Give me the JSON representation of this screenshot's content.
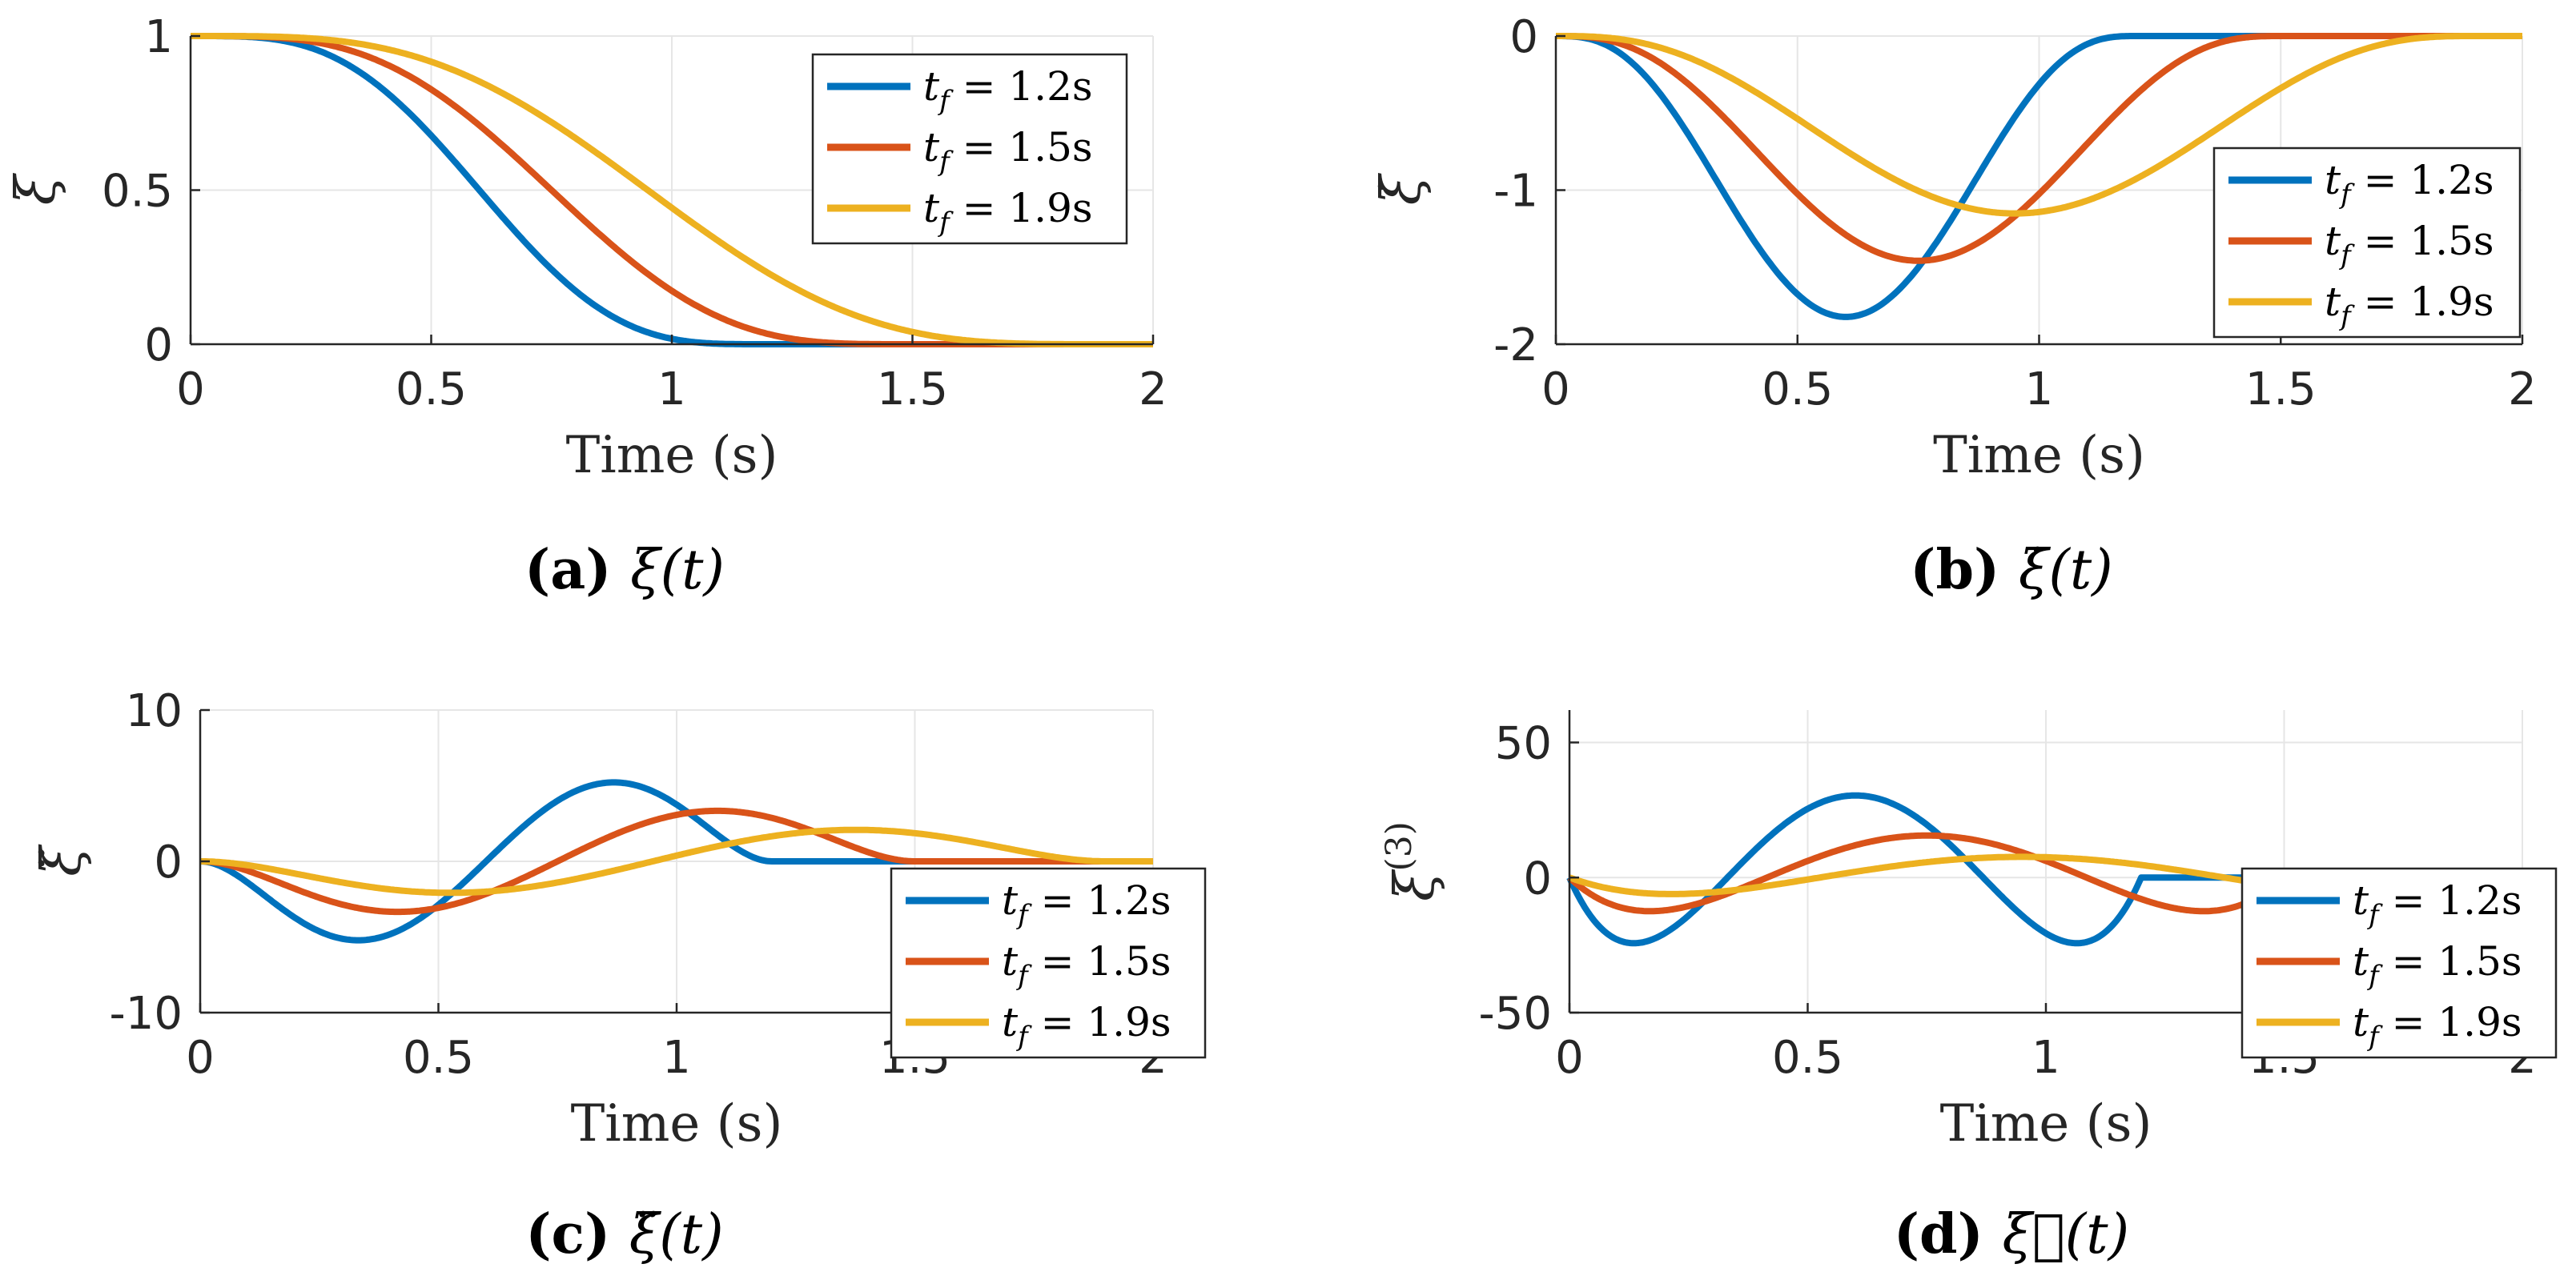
{
  "colors": {
    "blue": "#0072BD",
    "orange": "#D95319",
    "yellow": "#EDB120",
    "grid": "#e6e6e6",
    "axis": "#262626"
  },
  "chart_data": [
    {
      "id": "a",
      "type": "line",
      "function": "position",
      "caption_letter": "(a)",
      "caption_math": "ξ(t)",
      "xlabel": "Time (s)",
      "ylabel": "ξ",
      "xlim": [
        0,
        2
      ],
      "ylim": [
        0,
        1
      ],
      "xticks": [
        0,
        0.5,
        1,
        1.5,
        2
      ],
      "xtick_labels": [
        "0",
        "0.5",
        "1",
        "1.5",
        "2"
      ],
      "yticks": [
        0,
        0.5,
        1
      ],
      "ytick_labels": [
        "0",
        "0.5",
        "1"
      ],
      "legend_position": "top-right",
      "series": [
        {
          "name": "t_f = 1.2s",
          "tf": 1.2,
          "color": "#0072BD"
        },
        {
          "name": "t_f = 1.5s",
          "tf": 1.5,
          "color": "#D95319"
        },
        {
          "name": "t_f = 1.9s",
          "tf": 1.9,
          "color": "#EDB120"
        }
      ]
    },
    {
      "id": "b",
      "type": "line",
      "function": "velocity",
      "caption_letter": "(b)",
      "caption_math": "ξ̇(t)",
      "xlabel": "Time (s)",
      "ylabel": "ξ̇",
      "xlim": [
        0,
        2
      ],
      "ylim": [
        -2,
        0
      ],
      "xticks": [
        0,
        0.5,
        1,
        1.5,
        2
      ],
      "xtick_labels": [
        "0",
        "0.5",
        "1",
        "1.5",
        "2"
      ],
      "yticks": [
        -2,
        -1,
        0
      ],
      "ytick_labels": [
        "-2",
        "-1",
        "0"
      ],
      "legend_position": "right",
      "series": [
        {
          "name": "t_f = 1.2s",
          "tf": 1.2,
          "color": "#0072BD"
        },
        {
          "name": "t_f = 1.5s",
          "tf": 1.5,
          "color": "#D95319"
        },
        {
          "name": "t_f = 1.9s",
          "tf": 1.9,
          "color": "#EDB120"
        }
      ]
    },
    {
      "id": "c",
      "type": "line",
      "function": "acceleration",
      "caption_letter": "(c)",
      "caption_math": "ξ̈(t)",
      "xlabel": "Time (s)",
      "ylabel": "ξ̈",
      "xlim": [
        0,
        2
      ],
      "ylim": [
        -10,
        10
      ],
      "xticks": [
        0,
        0.5,
        1,
        1.5,
        2
      ],
      "xtick_labels": [
        "0",
        "0.5",
        "1",
        "1.5",
        "2"
      ],
      "yticks": [
        -10,
        0,
        10
      ],
      "ytick_labels": [
        "-10",
        "0",
        "10"
      ],
      "legend_position": "bottom-right",
      "series": [
        {
          "name": "t_f = 1.2s",
          "tf": 1.2,
          "color": "#0072BD"
        },
        {
          "name": "t_f = 1.5s",
          "tf": 1.5,
          "color": "#D95319"
        },
        {
          "name": "t_f = 1.9s",
          "tf": 1.9,
          "color": "#EDB120"
        }
      ]
    },
    {
      "id": "d",
      "type": "line",
      "function": "jerk",
      "caption_letter": "(d)",
      "caption_math": "ξ⃛(t)",
      "xlabel": "Time (s)",
      "ylabel": "ξ(3)",
      "xlim": [
        0,
        2
      ],
      "ylim": [
        -50,
        62
      ],
      "xticks": [
        0,
        0.5,
        1,
        1.5,
        2
      ],
      "xtick_labels": [
        "0",
        "0.5",
        "1",
        "1.5",
        "2"
      ],
      "yticks": [
        -50,
        0,
        50
      ],
      "ytick_labels": [
        "-50",
        "0",
        "50"
      ],
      "legend_position": "bottom-right",
      "series": [
        {
          "name": "t_f = 1.2s",
          "tf": 1.2,
          "color": "#0072BD"
        },
        {
          "name": "t_f = 1.5s",
          "tf": 1.5,
          "color": "#D95319"
        },
        {
          "name": "t_f = 1.9s",
          "tf": 1.9,
          "color": "#EDB120"
        }
      ]
    }
  ]
}
